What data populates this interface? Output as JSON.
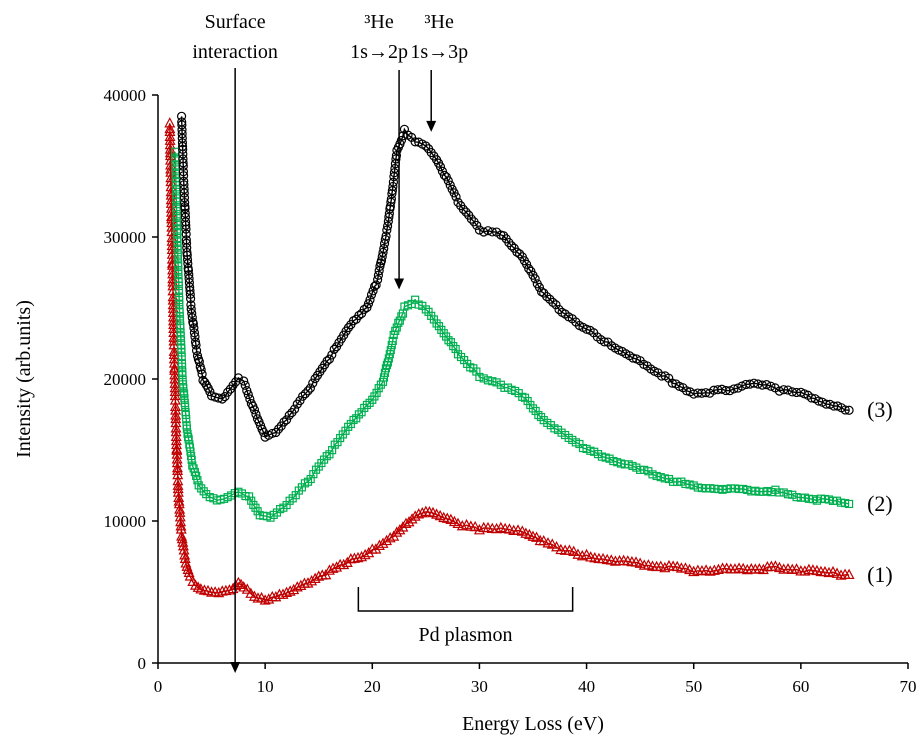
{
  "chart_data": {
    "type": "scatter",
    "title": "",
    "xlabel": "Energy Loss (eV)",
    "ylabel": "Intensity (arb.units)",
    "xlim": [
      0,
      70
    ],
    "ylim": [
      0,
      40000
    ],
    "xticks": [
      0,
      10,
      20,
      30,
      40,
      50,
      60,
      70
    ],
    "yticks": [
      0,
      10000,
      20000,
      30000,
      40000
    ],
    "grid": false,
    "series": [
      {
        "name": "(1)",
        "marker": "triangle",
        "color": "#c00000",
        "points": [
          [
            1.1,
            38000
          ],
          [
            1.3,
            30000
          ],
          [
            1.5,
            22000
          ],
          [
            1.7,
            16000
          ],
          [
            1.9,
            12000
          ],
          [
            2.2,
            9000
          ],
          [
            2.6,
            7000
          ],
          [
            3.0,
            6000
          ],
          [
            3.5,
            5400
          ],
          [
            4.0,
            5100
          ],
          [
            5.0,
            4900
          ],
          [
            6.0,
            5000
          ],
          [
            7.0,
            5300
          ],
          [
            7.5,
            5700
          ],
          [
            8.0,
            5400
          ],
          [
            9.0,
            4700
          ],
          [
            10.0,
            4500
          ],
          [
            11.0,
            4600
          ],
          [
            12.0,
            4900
          ],
          [
            14.0,
            5600
          ],
          [
            16.0,
            6400
          ],
          [
            18.0,
            7200
          ],
          [
            20.0,
            7900
          ],
          [
            22.0,
            9000
          ],
          [
            24.0,
            10400
          ],
          [
            25.0,
            10700
          ],
          [
            26.0,
            10500
          ],
          [
            28.0,
            9800
          ],
          [
            30.0,
            9400
          ],
          [
            32.0,
            9400
          ],
          [
            34.0,
            9200
          ],
          [
            36.0,
            8500
          ],
          [
            38.0,
            7900
          ],
          [
            40.0,
            7500
          ],
          [
            45.0,
            7000
          ],
          [
            50.0,
            6500
          ],
          [
            55.0,
            6600
          ],
          [
            58.0,
            6700
          ],
          [
            60.0,
            6500
          ],
          [
            64.5,
            6200
          ]
        ]
      },
      {
        "name": "(2)",
        "marker": "square",
        "color": "#00b050",
        "points": [
          [
            1.6,
            36000
          ],
          [
            1.8,
            30000
          ],
          [
            2.0,
            25000
          ],
          [
            2.3,
            20000
          ],
          [
            2.7,
            16500
          ],
          [
            3.2,
            14000
          ],
          [
            3.8,
            12500
          ],
          [
            4.5,
            11800
          ],
          [
            5.5,
            11400
          ],
          [
            6.5,
            11600
          ],
          [
            7.5,
            12000
          ],
          [
            8.5,
            11700
          ],
          [
            9.5,
            10500
          ],
          [
            10.5,
            10300
          ],
          [
            12.0,
            11200
          ],
          [
            14.0,
            12800
          ],
          [
            16.0,
            14800
          ],
          [
            18.0,
            16800
          ],
          [
            20.0,
            18500
          ],
          [
            21.0,
            19800
          ],
          [
            22.0,
            23000
          ],
          [
            23.0,
            25000
          ],
          [
            24.0,
            25500
          ],
          [
            25.0,
            25000
          ],
          [
            26.0,
            24000
          ],
          [
            28.0,
            21800
          ],
          [
            30.0,
            20200
          ],
          [
            32.0,
            19600
          ],
          [
            34.0,
            18800
          ],
          [
            36.0,
            17000
          ],
          [
            38.0,
            16000
          ],
          [
            40.0,
            15000
          ],
          [
            45.0,
            13600
          ],
          [
            50.0,
            12400
          ],
          [
            55.0,
            12200
          ],
          [
            58.0,
            12100
          ],
          [
            60.0,
            11700
          ],
          [
            64.5,
            11200
          ]
        ]
      },
      {
        "name": "(3)",
        "marker": "circle",
        "color": "#000000",
        "points": [
          [
            2.2,
            38500
          ],
          [
            2.4,
            34000
          ],
          [
            2.7,
            29000
          ],
          [
            3.1,
            25000
          ],
          [
            3.6,
            22000
          ],
          [
            4.2,
            20000
          ],
          [
            5.0,
            18800
          ],
          [
            6.0,
            18500
          ],
          [
            7.0,
            19500
          ],
          [
            7.5,
            20000
          ],
          [
            8.0,
            19800
          ],
          [
            9.0,
            17800
          ],
          [
            10.0,
            16000
          ],
          [
            11.0,
            16300
          ],
          [
            12.0,
            17200
          ],
          [
            14.0,
            19200
          ],
          [
            16.0,
            21500
          ],
          [
            18.0,
            23800
          ],
          [
            19.5,
            25000
          ],
          [
            20.5,
            27000
          ],
          [
            21.5,
            31000
          ],
          [
            22.3,
            36000
          ],
          [
            23.0,
            37500
          ],
          [
            24.0,
            36800
          ],
          [
            25.0,
            36500
          ],
          [
            26.0,
            35500
          ],
          [
            28.0,
            32500
          ],
          [
            30.0,
            30500
          ],
          [
            32.0,
            30200
          ],
          [
            34.0,
            28500
          ],
          [
            36.0,
            26000
          ],
          [
            38.0,
            24500
          ],
          [
            40.0,
            23500
          ],
          [
            42.0,
            22500
          ],
          [
            45.0,
            21300
          ],
          [
            48.0,
            19800
          ],
          [
            50.0,
            19000
          ],
          [
            53.0,
            19200
          ],
          [
            56.0,
            19700
          ],
          [
            58.0,
            19200
          ],
          [
            60.0,
            19000
          ],
          [
            62.0,
            18300
          ],
          [
            64.5,
            17800
          ]
        ]
      }
    ],
    "annotations": [
      {
        "lines": [
          "Surface",
          "interaction"
        ],
        "x": 7.2
      },
      {
        "lines": [
          "³He",
          "1s→2p"
        ],
        "x": 22.5
      },
      {
        "lines": [
          "³He",
          "1s→3p"
        ],
        "x": 25.5
      },
      {
        "text": "Pd plasmon",
        "x_range": [
          18.7,
          38.7
        ]
      }
    ]
  }
}
